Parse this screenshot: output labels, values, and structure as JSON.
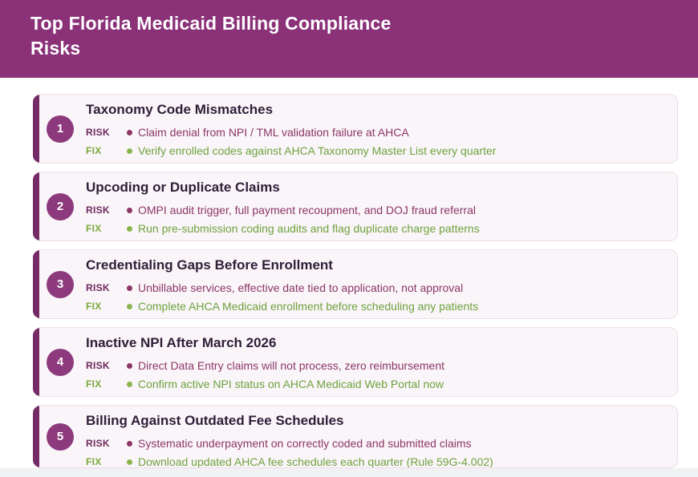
{
  "header": {
    "title": "Top Florida Medicaid Billing Compliance Risks"
  },
  "labels": {
    "risk": "RISK",
    "fix": "FIX"
  },
  "colors": {
    "header_bg": "#8a3178",
    "accent_bar": "#742b66",
    "number_badge": "#8c3a7d",
    "card_bg": "#faf5f9",
    "card_border": "#eedce9",
    "title_text": "#2e1e38",
    "risk_label": "#6d2a5e",
    "risk_text": "#8c3767",
    "fix_label": "#79a83b",
    "fix_text": "#6ea23d",
    "footer_strip": "#f1f2f3"
  },
  "items": [
    {
      "number": "1",
      "title": "Taxonomy Code Mismatches",
      "risk": "Claim denial from NPI / TML validation failure at AHCA",
      "fix": "Verify enrolled codes against AHCA Taxonomy Master List every quarter"
    },
    {
      "number": "2",
      "title": "Upcoding or Duplicate Claims",
      "risk": "OMPI audit trigger, full payment recoupment, and DOJ fraud referral",
      "fix": "Run pre-submission coding audits and flag duplicate charge patterns"
    },
    {
      "number": "3",
      "title": "Credentialing Gaps Before Enrollment",
      "risk": "Unbillable services, effective date tied to application, not approval",
      "fix": "Complete AHCA Medicaid enrollment before scheduling any patients"
    },
    {
      "number": "4",
      "title": "Inactive NPI After March 2026",
      "risk": "Direct Data Entry claims will not process, zero reimbursement",
      "fix": "Confirm active NPI status on AHCA Medicaid Web Portal now"
    },
    {
      "number": "5",
      "title": "Billing Against Outdated Fee Schedules",
      "risk": "Systematic underpayment on correctly coded and submitted claims",
      "fix": "Download updated AHCA fee schedules each quarter (Rule 59G-4.002)"
    }
  ]
}
